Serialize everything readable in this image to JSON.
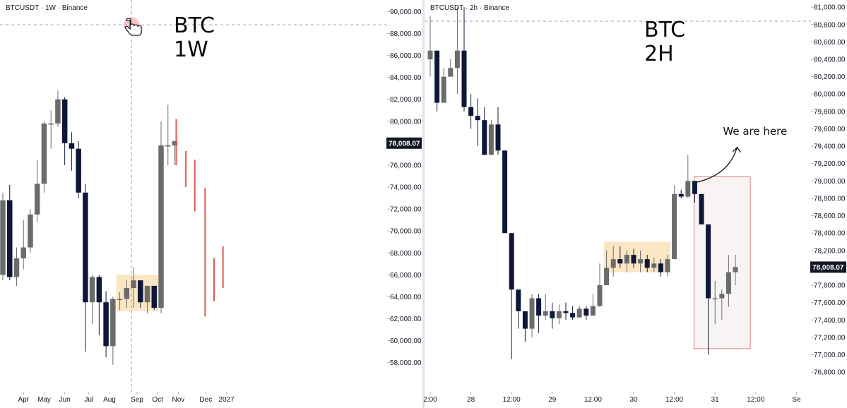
{
  "chart_data": [
    {
      "type": "candlestick",
      "symbol_label": "BTCUSDT · 1W · Binance",
      "timeframe_label": "BTC\n1W",
      "ylim": [
        56500,
        90800
      ],
      "y_ticks": [
        58000,
        60000,
        62000,
        64000,
        66000,
        68000,
        70000,
        72000,
        74000,
        76000,
        78000,
        80000,
        82000,
        84000,
        86000,
        88000,
        90000
      ],
      "y_tick_labels": [
        "58,000.00",
        "60,000.00",
        "62,000.00",
        "64,000.00",
        "66,000.00",
        "68,000.00",
        "70,000.00",
        "72,000.00",
        "74,000.00",
        "76,000.00",
        "78,000.00",
        "80,000.00",
        "82,000.00",
        "84,000.00",
        "86,000.00",
        "88,000.00",
        "90,000.00"
      ],
      "x_labels": [
        {
          "label": "Apr",
          "index": 3
        },
        {
          "label": "May",
          "index": 6
        },
        {
          "label": "Jun",
          "index": 9
        },
        {
          "label": "Jul",
          "index": 12.5
        },
        {
          "label": "Aug",
          "index": 15.5
        },
        {
          "label": "Sep",
          "index": 19.5
        },
        {
          "label": "Oct",
          "index": 22.5
        },
        {
          "label": "Nov",
          "index": 25.5
        },
        {
          "label": "Dec",
          "index": 29.5
        },
        {
          "label": "2027",
          "index": 32.5
        }
      ],
      "last_price_label": "78,008.07",
      "last_price": 78008,
      "candles": [
        {
          "o": 66000,
          "h": 73500,
          "l": 65500,
          "c": 72800
        },
        {
          "o": 72800,
          "h": 74200,
          "l": 65500,
          "c": 65800
        },
        {
          "o": 65800,
          "h": 68500,
          "l": 65000,
          "c": 67500
        },
        {
          "o": 67500,
          "h": 71000,
          "l": 66500,
          "c": 68500
        },
        {
          "o": 68500,
          "h": 72000,
          "l": 68000,
          "c": 71500
        },
        {
          "o": 71500,
          "h": 76500,
          "l": 70800,
          "c": 74300
        },
        {
          "o": 74300,
          "h": 80000,
          "l": 73500,
          "c": 79800
        },
        {
          "o": 79800,
          "h": 81000,
          "l": 77500,
          "c": 79800
        },
        {
          "o": 79800,
          "h": 82800,
          "l": 79500,
          "c": 82000
        },
        {
          "o": 82000,
          "h": 82200,
          "l": 76000,
          "c": 78000
        },
        {
          "o": 78000,
          "h": 79000,
          "l": 75500,
          "c": 77500
        },
        {
          "o": 77500,
          "h": 78200,
          "l": 73000,
          "c": 73500
        },
        {
          "o": 73500,
          "h": 74300,
          "l": 59000,
          "c": 63500
        },
        {
          "o": 63500,
          "h": 66000,
          "l": 61500,
          "c": 65800
        },
        {
          "o": 65800,
          "h": 66000,
          "l": 60500,
          "c": 63500
        },
        {
          "o": 63500,
          "h": 64500,
          "l": 58500,
          "c": 59500
        },
        {
          "o": 59500,
          "h": 64000,
          "l": 57800,
          "c": 63800
        },
        {
          "o": 63800,
          "h": 64400,
          "l": 62800,
          "c": 63800
        },
        {
          "o": 63800,
          "h": 65500,
          "l": 63000,
          "c": 64800
        },
        {
          "o": 64800,
          "h": 66700,
          "l": 63000,
          "c": 65500
        },
        {
          "o": 65500,
          "h": 65500,
          "l": 63000,
          "c": 63500
        },
        {
          "o": 63500,
          "h": 65000,
          "l": 62500,
          "c": 65000
        },
        {
          "o": 65000,
          "h": 65000,
          "l": 62800,
          "c": 63000
        },
        {
          "o": 63000,
          "h": 80000,
          "l": 62500,
          "c": 77800
        },
        {
          "o": 77800,
          "h": 81500,
          "l": 76000,
          "c": 77800
        },
        {
          "o": 77800,
          "h": 78200,
          "l": 76000,
          "c": 78200
        }
      ],
      "projection_candles": [
        {
          "index": 25.2,
          "top": 80200,
          "bottom": 76000
        },
        {
          "index": 26.6,
          "top": 77300,
          "bottom": 74000
        },
        {
          "index": 27.9,
          "top": 76500,
          "bottom": 71800
        },
        {
          "index": 29.4,
          "top": 73900,
          "bottom": 62200
        },
        {
          "index": 30.7,
          "top": 67500,
          "bottom": 63600
        },
        {
          "index": 32.0,
          "top": 68600,
          "bottom": 64800
        }
      ],
      "consolidation_zone": {
        "from_index": 16.5,
        "to_index": 22.6,
        "top": 66000,
        "bottom": 62700
      },
      "crosshair_index": 18.7,
      "crosshair_price": 88800
    },
    {
      "type": "candlestick",
      "symbol_label": "BTCUSDT · 2h · Binance",
      "timeframe_label": "BTC\n2H",
      "ylim": [
        76720,
        81050
      ],
      "y_ticks": [
        76800,
        77000,
        77200,
        77400,
        77600,
        77800,
        78000,
        78200,
        78400,
        78600,
        78800,
        79000,
        79200,
        79400,
        79600,
        79800,
        80000,
        80200,
        80400,
        80600,
        80800,
        81000
      ],
      "y_tick_labels": [
        "76,800.00",
        "77,000.00",
        "77,200.00",
        "77,400.00",
        "77,600.00",
        "77,800.00",
        "78,000.00",
        "78,200.00",
        "78,400.00",
        "78,600.00",
        "78,800.00",
        "79,000.00",
        "79,200.00",
        "79,400.00",
        "79,600.00",
        "79,800.00",
        "80,000.00",
        "80,200.00",
        "80,400.00",
        "80,600.00",
        "80,800.00",
        "81,000.00"
      ],
      "x_labels": [
        {
          "label": "2:00",
          "index": 0
        },
        {
          "label": "28",
          "index": 6
        },
        {
          "label": "12:00",
          "index": 12
        },
        {
          "label": "29",
          "index": 18
        },
        {
          "label": "12:00",
          "index": 24
        },
        {
          "label": "30",
          "index": 30
        },
        {
          "label": "12:00",
          "index": 36
        },
        {
          "label": "31",
          "index": 42
        },
        {
          "label": "12:00",
          "index": 48
        },
        {
          "label": "Se",
          "index": 54
        }
      ],
      "last_price_label": "78,008.07",
      "last_price": 78008,
      "candles": [
        {
          "o": 80400,
          "h": 80900,
          "l": 80200,
          "c": 80500
        },
        {
          "o": 80500,
          "h": 80500,
          "l": 79800,
          "c": 79900
        },
        {
          "o": 79900,
          "h": 80300,
          "l": 79900,
          "c": 80200
        },
        {
          "o": 80200,
          "h": 80400,
          "l": 80200,
          "c": 80300
        },
        {
          "o": 80300,
          "h": 81000,
          "l": 80000,
          "c": 80500
        },
        {
          "o": 80500,
          "h": 81000,
          "l": 79800,
          "c": 79850
        },
        {
          "o": 79850,
          "h": 80000,
          "l": 79600,
          "c": 79750
        },
        {
          "o": 79750,
          "h": 79950,
          "l": 79400,
          "c": 79700
        },
        {
          "o": 79700,
          "h": 79850,
          "l": 79300,
          "c": 79300
        },
        {
          "o": 79300,
          "h": 79700,
          "l": 79300,
          "c": 79650
        },
        {
          "o": 79650,
          "h": 79850,
          "l": 79300,
          "c": 79350
        },
        {
          "o": 79350,
          "h": 79350,
          "l": 78400,
          "c": 78400
        },
        {
          "o": 78400,
          "h": 78400,
          "l": 76950,
          "c": 77750
        },
        {
          "o": 77750,
          "h": 77750,
          "l": 77300,
          "c": 77500
        },
        {
          "o": 77500,
          "h": 77500,
          "l": 77150,
          "c": 77300
        },
        {
          "o": 77300,
          "h": 77700,
          "l": 77200,
          "c": 77650
        },
        {
          "o": 77650,
          "h": 77700,
          "l": 77250,
          "c": 77450
        },
        {
          "o": 77450,
          "h": 77700,
          "l": 77400,
          "c": 77500
        },
        {
          "o": 77500,
          "h": 77600,
          "l": 77300,
          "c": 77420
        },
        {
          "o": 77420,
          "h": 77580,
          "l": 77350,
          "c": 77500
        },
        {
          "o": 77500,
          "h": 77600,
          "l": 77400,
          "c": 77480
        },
        {
          "o": 77480,
          "h": 77560,
          "l": 77400,
          "c": 77430
        },
        {
          "o": 77430,
          "h": 77560,
          "l": 77420,
          "c": 77530
        },
        {
          "o": 77530,
          "h": 77560,
          "l": 77400,
          "c": 77450
        },
        {
          "o": 77450,
          "h": 77700,
          "l": 77450,
          "c": 77560
        },
        {
          "o": 77560,
          "h": 78050,
          "l": 77550,
          "c": 77800
        },
        {
          "o": 77800,
          "h": 78200,
          "l": 77800,
          "c": 78000
        },
        {
          "o": 78000,
          "h": 78250,
          "l": 77900,
          "c": 78100
        },
        {
          "o": 78100,
          "h": 78250,
          "l": 78000,
          "c": 78050
        },
        {
          "o": 78050,
          "h": 78200,
          "l": 77950,
          "c": 78150
        },
        {
          "o": 78150,
          "h": 78220,
          "l": 78000,
          "c": 78050
        },
        {
          "o": 78050,
          "h": 78200,
          "l": 77950,
          "c": 78100
        },
        {
          "o": 78100,
          "h": 78150,
          "l": 77950,
          "c": 78000
        },
        {
          "o": 78000,
          "h": 78120,
          "l": 77950,
          "c": 78050
        },
        {
          "o": 78050,
          "h": 78100,
          "l": 77900,
          "c": 77950
        },
        {
          "o": 77950,
          "h": 78150,
          "l": 77900,
          "c": 78100
        },
        {
          "o": 78100,
          "h": 78950,
          "l": 78100,
          "c": 78850
        },
        {
          "o": 78850,
          "h": 78900,
          "l": 78800,
          "c": 78820
        },
        {
          "o": 78820,
          "h": 79300,
          "l": 78800,
          "c": 79000
        },
        {
          "o": 79000,
          "h": 79000,
          "l": 78750,
          "c": 78850
        },
        {
          "o": 78850,
          "h": 78850,
          "l": 78500,
          "c": 78500
        },
        {
          "o": 78500,
          "h": 78500,
          "l": 77000,
          "c": 77650
        },
        {
          "o": 77650,
          "h": 77850,
          "l": 77350,
          "c": 77650
        },
        {
          "o": 77650,
          "h": 77750,
          "l": 77400,
          "c": 77700
        },
        {
          "o": 77700,
          "h": 78150,
          "l": 77550,
          "c": 77950
        },
        {
          "o": 77950,
          "h": 78150,
          "l": 77800,
          "c": 78010
        }
      ],
      "consolidation_zone": {
        "from_index": 25.6,
        "to_index": 35.4,
        "top": 78300,
        "bottom": 77950
      },
      "target_box": {
        "from_index": 38.9,
        "to_index": 47.2,
        "top": 79050,
        "bottom": 77070
      },
      "annotation": {
        "text": "We are here",
        "at_index": 39,
        "at_price": 78980
      }
    }
  ],
  "colors": {
    "bull_candle": "#6b6b6b",
    "bear_candle": "#0e1738",
    "projection": "#e05a4e",
    "zone_fill": "#fbe3bc",
    "box_border": "#d98080",
    "box_fill": "#f9f4f4",
    "crosshair": "#9aa0a6",
    "divider": "#e0e3eb",
    "price_tag_bg": "#131722",
    "cursor_dot": "#f7b8b8"
  },
  "icons": {
    "cursor": "hand-pointer-icon"
  }
}
